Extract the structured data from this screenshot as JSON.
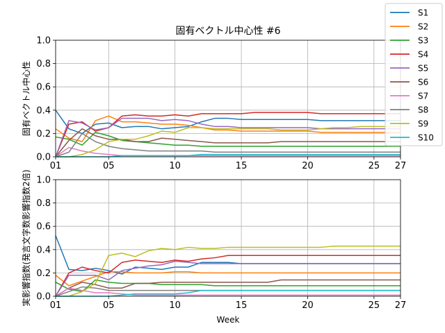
{
  "chart_data": [
    {
      "type": "line",
      "title": "固有ベクトル中心性 #6",
      "xlabel": "",
      "ylabel": "固有ベクトル中心性",
      "xlim": [
        1,
        27
      ],
      "ylim": [
        0.0,
        1.0
      ],
      "grid": true,
      "x": [
        1,
        2,
        3,
        4,
        5,
        6,
        7,
        8,
        9,
        10,
        11,
        12,
        13,
        14,
        15,
        16,
        17,
        18,
        19,
        20,
        21,
        22,
        23,
        24,
        25,
        26,
        27
      ],
      "series": [
        {
          "name": "S1",
          "values": [
            0.4,
            0.24,
            0.2,
            0.28,
            0.29,
            0.25,
            0.26,
            0.26,
            0.24,
            0.25,
            0.26,
            0.3,
            0.33,
            0.33,
            0.32,
            0.32,
            0.32,
            0.32,
            0.32,
            0.32,
            0.31,
            0.31,
            0.31,
            0.31,
            0.31,
            0.31,
            0.31
          ]
        },
        {
          "name": "S2",
          "values": [
            0.24,
            0.16,
            0.13,
            0.31,
            0.35,
            0.3,
            0.3,
            0.29,
            0.28,
            0.28,
            0.27,
            0.25,
            0.23,
            0.23,
            0.22,
            0.22,
            0.22,
            0.22,
            0.22,
            0.22,
            0.21,
            0.21,
            0.21,
            0.21,
            0.21,
            0.21,
            0.21
          ]
        },
        {
          "name": "S3",
          "values": [
            0.17,
            0.15,
            0.1,
            0.21,
            0.18,
            0.14,
            0.13,
            0.12,
            0.11,
            0.1,
            0.1,
            0.09,
            0.09,
            0.09,
            0.09,
            0.09,
            0.09,
            0.09,
            0.09,
            0.09,
            0.09,
            0.09,
            0.09,
            0.09,
            0.09,
            0.09,
            0.09
          ]
        },
        {
          "name": "S4",
          "values": [
            0.0,
            0.28,
            0.3,
            0.22,
            0.25,
            0.35,
            0.36,
            0.35,
            0.35,
            0.36,
            0.35,
            0.37,
            0.37,
            0.37,
            0.37,
            0.38,
            0.38,
            0.38,
            0.38,
            0.38,
            0.37,
            0.37,
            0.37,
            0.37,
            0.37,
            0.37,
            0.37
          ]
        },
        {
          "name": "S5",
          "values": [
            0.0,
            0.31,
            0.29,
            0.23,
            0.25,
            0.33,
            0.33,
            0.33,
            0.31,
            0.32,
            0.31,
            0.28,
            0.26,
            0.26,
            0.25,
            0.25,
            0.25,
            0.25,
            0.25,
            0.25,
            0.24,
            0.24,
            0.24,
            0.24,
            0.24,
            0.24,
            0.24
          ]
        },
        {
          "name": "S6",
          "values": [
            0.0,
            0.14,
            0.24,
            0.18,
            0.15,
            0.15,
            0.13,
            0.13,
            0.16,
            0.15,
            0.14,
            0.13,
            0.12,
            0.12,
            0.12,
            0.12,
            0.12,
            0.13,
            0.13,
            0.13,
            0.13,
            0.13,
            0.13,
            0.13,
            0.13,
            0.13,
            0.13
          ]
        },
        {
          "name": "S7",
          "values": [
            0.0,
            0.08,
            0.05,
            0.03,
            0.02,
            0.01,
            0.01,
            0.01,
            0.01,
            0.01,
            0.01,
            0.01,
            0.01,
            0.01,
            0.01,
            0.01,
            0.01,
            0.01,
            0.01,
            0.01,
            0.01,
            0.01,
            0.01,
            0.01,
            0.01,
            0.01,
            0.01
          ]
        },
        {
          "name": "S8",
          "values": [
            0.0,
            0.04,
            0.2,
            0.13,
            0.09,
            0.07,
            0.06,
            0.05,
            0.05,
            0.05,
            0.05,
            0.05,
            0.04,
            0.04,
            0.04,
            0.04,
            0.04,
            0.04,
            0.04,
            0.04,
            0.04,
            0.04,
            0.04,
            0.04,
            0.04,
            0.04,
            0.04
          ]
        },
        {
          "name": "S9",
          "values": [
            0.0,
            0.0,
            0.02,
            0.06,
            0.13,
            0.15,
            0.15,
            0.18,
            0.22,
            0.21,
            0.25,
            0.25,
            0.24,
            0.24,
            0.24,
            0.24,
            0.24,
            0.23,
            0.23,
            0.23,
            0.24,
            0.25,
            0.25,
            0.26,
            0.26,
            0.26,
            0.26
          ]
        },
        {
          "name": "S10",
          "values": [
            0.0,
            0.0,
            0.0,
            0.0,
            0.0,
            0.01,
            0.01,
            0.01,
            0.01,
            0.01,
            0.01,
            0.02,
            0.02,
            0.02,
            0.02,
            0.02,
            0.02,
            0.02,
            0.02,
            0.02,
            0.02,
            0.02,
            0.02,
            0.02,
            0.02,
            0.02,
            0.02
          ]
        }
      ]
    },
    {
      "type": "line",
      "title": "",
      "xlabel": "Week",
      "ylabel": "実影響指数(発言文字数影響指数2倍)",
      "xlim": [
        1,
        27
      ],
      "ylim": [
        0.0,
        1.0
      ],
      "grid": true,
      "x": [
        1,
        2,
        3,
        4,
        5,
        6,
        7,
        8,
        9,
        10,
        11,
        12,
        13,
        14,
        15,
        16,
        17,
        18,
        19,
        20,
        21,
        22,
        23,
        24,
        25,
        26,
        27
      ],
      "series": [
        {
          "name": "S1",
          "values": [
            0.52,
            0.23,
            0.22,
            0.24,
            0.22,
            0.19,
            0.25,
            0.24,
            0.23,
            0.25,
            0.25,
            0.29,
            0.29,
            0.29,
            0.28,
            0.28,
            0.28,
            0.28,
            0.28,
            0.28,
            0.28,
            0.28,
            0.28,
            0.28,
            0.28,
            0.28,
            0.28
          ]
        },
        {
          "name": "S2",
          "values": [
            0.18,
            0.09,
            0.13,
            0.17,
            0.21,
            0.21,
            0.2,
            0.2,
            0.2,
            0.21,
            0.21,
            0.2,
            0.2,
            0.2,
            0.2,
            0.2,
            0.2,
            0.2,
            0.2,
            0.2,
            0.2,
            0.2,
            0.2,
            0.2,
            0.2,
            0.2,
            0.2
          ]
        },
        {
          "name": "S3",
          "values": [
            0.12,
            0.06,
            0.04,
            0.14,
            0.12,
            0.11,
            0.11,
            0.11,
            0.1,
            0.1,
            0.1,
            0.1,
            0.09,
            0.09,
            0.09,
            0.09,
            0.09,
            0.09,
            0.09,
            0.09,
            0.09,
            0.09,
            0.09,
            0.09,
            0.09,
            0.09,
            0.09
          ]
        },
        {
          "name": "S4",
          "values": [
            0.0,
            0.2,
            0.25,
            0.22,
            0.2,
            0.29,
            0.31,
            0.3,
            0.29,
            0.31,
            0.3,
            0.32,
            0.33,
            0.35,
            0.35,
            0.35,
            0.35,
            0.35,
            0.35,
            0.35,
            0.35,
            0.35,
            0.35,
            0.35,
            0.35,
            0.35,
            0.35
          ]
        },
        {
          "name": "S5",
          "values": [
            0.0,
            0.18,
            0.18,
            0.18,
            0.14,
            0.22,
            0.24,
            0.26,
            0.27,
            0.3,
            0.29,
            0.28,
            0.28,
            0.28,
            0.28,
            0.28,
            0.28,
            0.28,
            0.28,
            0.28,
            0.28,
            0.28,
            0.28,
            0.28,
            0.28,
            0.28,
            0.28
          ]
        },
        {
          "name": "S6",
          "values": [
            0.0,
            0.07,
            0.12,
            0.1,
            0.07,
            0.07,
            0.11,
            0.11,
            0.12,
            0.12,
            0.12,
            0.12,
            0.12,
            0.12,
            0.12,
            0.12,
            0.12,
            0.14,
            0.14,
            0.14,
            0.14,
            0.14,
            0.14,
            0.14,
            0.14,
            0.14,
            0.14
          ]
        },
        {
          "name": "S7",
          "values": [
            0.0,
            0.07,
            0.05,
            0.03,
            0.03,
            0.02,
            0.01,
            0.01,
            0.01,
            0.01,
            0.01,
            0.01,
            0.01,
            0.01,
            0.01,
            0.01,
            0.01,
            0.01,
            0.01,
            0.01,
            0.01,
            0.01,
            0.01,
            0.01,
            0.01,
            0.01,
            0.01
          ]
        },
        {
          "name": "S8",
          "values": [
            0.0,
            0.04,
            0.08,
            0.07,
            0.05,
            0.05,
            0.05,
            0.05,
            0.05,
            0.05,
            0.05,
            0.05,
            0.05,
            0.05,
            0.05,
            0.05,
            0.05,
            0.05,
            0.05,
            0.05,
            0.05,
            0.05,
            0.05,
            0.05,
            0.05,
            0.05,
            0.05
          ]
        },
        {
          "name": "S9",
          "values": [
            0.0,
            0.0,
            0.04,
            0.11,
            0.35,
            0.37,
            0.34,
            0.39,
            0.41,
            0.4,
            0.42,
            0.41,
            0.41,
            0.42,
            0.42,
            0.42,
            0.42,
            0.42,
            0.42,
            0.42,
            0.42,
            0.43,
            0.43,
            0.43,
            0.43,
            0.43,
            0.43
          ]
        },
        {
          "name": "S10",
          "values": [
            0.0,
            0.0,
            0.0,
            0.0,
            0.0,
            0.01,
            0.02,
            0.02,
            0.02,
            0.02,
            0.03,
            0.05,
            0.05,
            0.05,
            0.05,
            0.05,
            0.05,
            0.05,
            0.05,
            0.05,
            0.05,
            0.05,
            0.05,
            0.05,
            0.05,
            0.05,
            0.05
          ]
        }
      ]
    }
  ],
  "axes": {
    "xticks": [
      {
        "v": 1,
        "label": "01"
      },
      {
        "v": 5,
        "label": "05"
      },
      {
        "v": 10,
        "label": "10"
      },
      {
        "v": 15,
        "label": "15"
      },
      {
        "v": 20,
        "label": "20"
      },
      {
        "v": 25,
        "label": "25"
      },
      {
        "v": 27,
        "label": "27"
      }
    ],
    "yticks": [
      {
        "v": 0.0,
        "label": "0.0"
      },
      {
        "v": 0.2,
        "label": "0.2"
      },
      {
        "v": 0.4,
        "label": "0.4"
      },
      {
        "v": 0.6,
        "label": "0.6"
      },
      {
        "v": 0.8,
        "label": "0.8"
      },
      {
        "v": 1.0,
        "label": "1.0"
      }
    ]
  },
  "legend": {
    "placement": "top-right",
    "entries": [
      {
        "label": "S1",
        "color": "#1f77b4"
      },
      {
        "label": "S2",
        "color": "#ff7f0e"
      },
      {
        "label": "S3",
        "color": "#2ca02c"
      },
      {
        "label": "S4",
        "color": "#d62728"
      },
      {
        "label": "S5",
        "color": "#9467bd"
      },
      {
        "label": "S6",
        "color": "#8c564b"
      },
      {
        "label": "S7",
        "color": "#e377c2"
      },
      {
        "label": "S8",
        "color": "#7f7f7f"
      },
      {
        "label": "S9",
        "color": "#bcbd22"
      },
      {
        "label": "S10",
        "color": "#17becf"
      }
    ]
  }
}
